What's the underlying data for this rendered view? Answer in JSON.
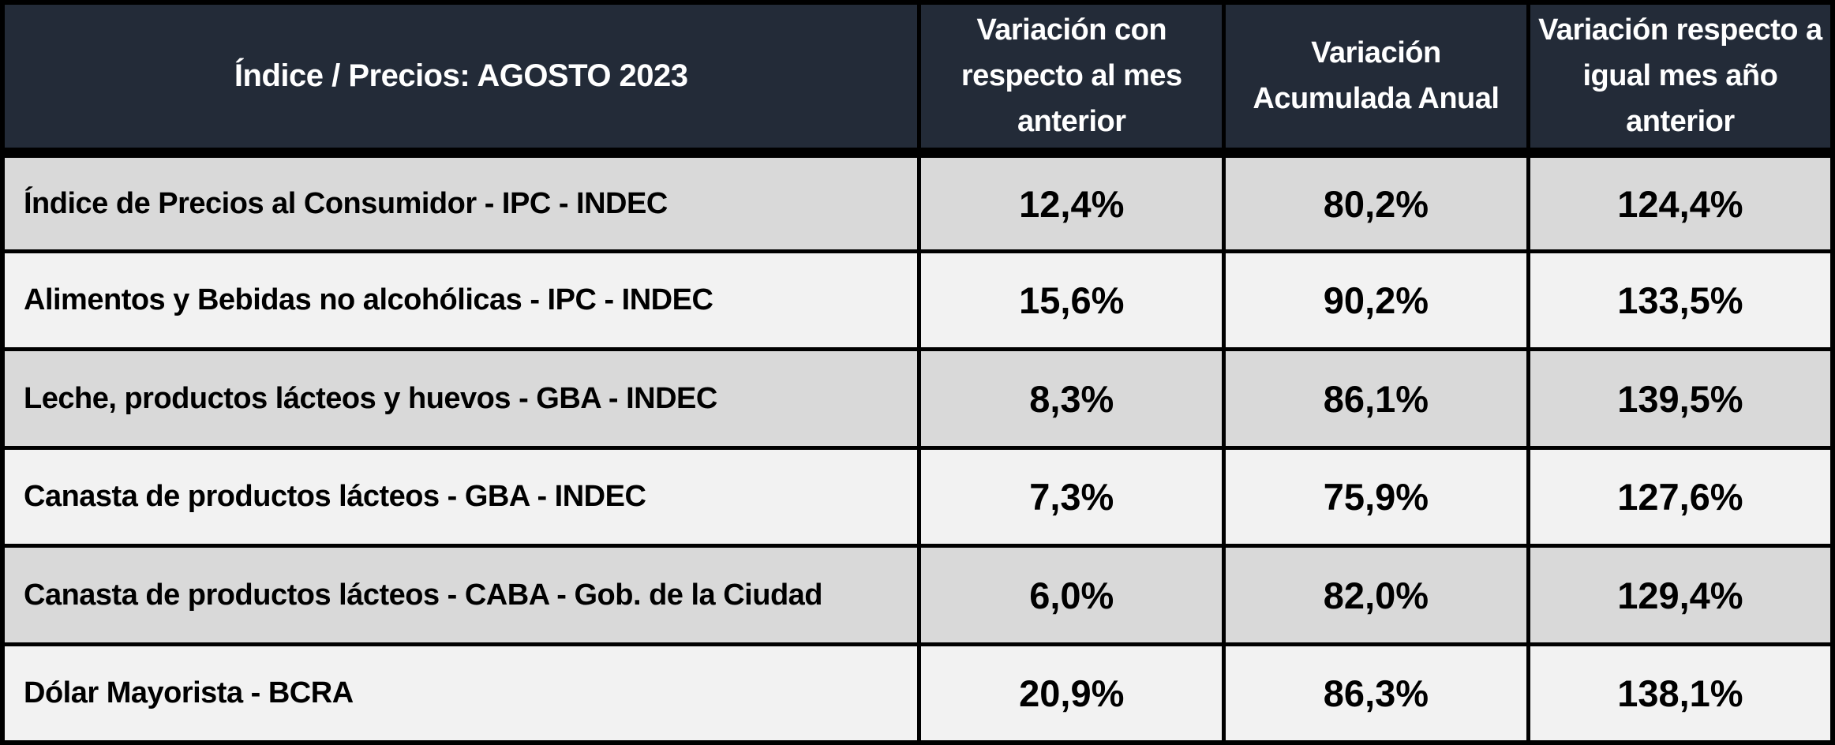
{
  "chart_data": {
    "type": "table",
    "title": "Índice / Precios: AGOSTO 2023",
    "period": "AGOSTO 2023",
    "columns": [
      "Índice / Precios: AGOSTO 2023",
      "Variación con respecto al mes anterior",
      "Variación Acumulada Anual",
      "Variación respecto a igual mes año anterior"
    ],
    "rows": [
      {
        "label": "Índice de Precios al Consumidor - IPC - INDEC",
        "values": [
          "12,4%",
          "80,2%",
          "124,4%"
        ]
      },
      {
        "label": "Alimentos y Bebidas no alcohólicas - IPC - INDEC",
        "values": [
          "15,6%",
          "90,2%",
          "133,5%"
        ]
      },
      {
        "label": "Leche, productos lácteos y huevos - GBA - INDEC",
        "values": [
          "8,3%",
          "86,1%",
          "139,5%"
        ]
      },
      {
        "label": "Canasta de productos lácteos - GBA - INDEC",
        "values": [
          "7,3%",
          "75,9%",
          "127,6%"
        ]
      },
      {
        "label": "Canasta de productos lácteos - CABA - Gob. de la Ciudad",
        "values": [
          "6,0%",
          "82,0%",
          "129,4%"
        ]
      },
      {
        "label": "Dólar Mayorista - BCRA",
        "values": [
          "20,9%",
          "86,3%",
          "138,1%"
        ]
      }
    ],
    "values_numeric": {
      "variacion_mes_anterior_pct": [
        12.4,
        15.6,
        8.3,
        7.3,
        6.0,
        20.9
      ],
      "variacion_acumulada_anual_pct": [
        80.2,
        90.2,
        86.1,
        75.9,
        82.0,
        86.3
      ],
      "variacion_interanual_pct": [
        124.4,
        133.5,
        139.5,
        127.6,
        129.4,
        138.1
      ]
    }
  },
  "colors": {
    "header_bg": "#232B38",
    "header_text": "#FFFFFF",
    "row_odd_bg": "#D9D9D9",
    "row_even_bg": "#F2F2F2",
    "border": "#000000",
    "cell_text": "#000000"
  }
}
